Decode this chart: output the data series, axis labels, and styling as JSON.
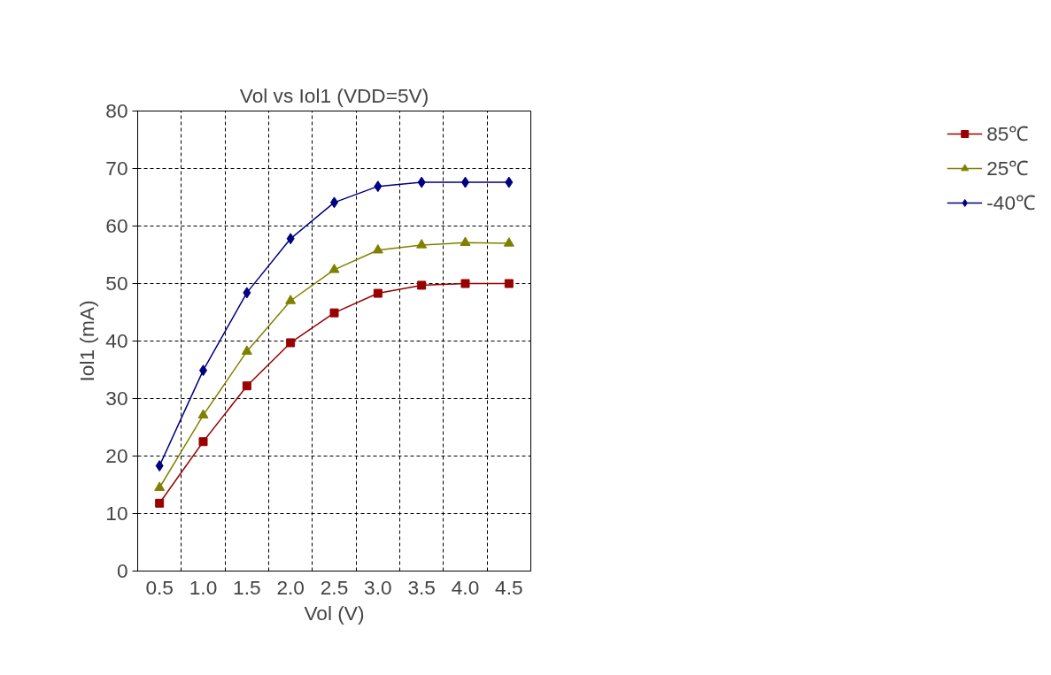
{
  "chart_data": {
    "type": "line",
    "title": "Vol vs Iol1 (VDD=5V)",
    "xlabel": "Vol (V)",
    "ylabel": "Iol1 (mA)",
    "categories": [
      "0.5",
      "1.0",
      "1.5",
      "2.0",
      "2.5",
      "3.0",
      "3.5",
      "4.0",
      "4.5"
    ],
    "ylim": [
      0,
      80
    ],
    "yticks": [
      0,
      10,
      20,
      30,
      40,
      50,
      60,
      70,
      80
    ],
    "grid": true,
    "legend": "right",
    "series": [
      {
        "name": "85℃",
        "color": "#990000",
        "marker": "square",
        "values": [
          11.8,
          22.5,
          32.2,
          39.7,
          44.9,
          48.3,
          49.7,
          50.0,
          50.0
        ]
      },
      {
        "name": "25℃",
        "color": "#808000",
        "marker": "triangle",
        "values": [
          14.5,
          27.1,
          38.2,
          47.0,
          52.4,
          55.8,
          56.7,
          57.1,
          57.0
        ]
      },
      {
        "name": "-40℃",
        "color": "#000080",
        "marker": "diamond",
        "values": [
          18.3,
          34.9,
          48.4,
          57.8,
          64.1,
          66.9,
          67.6,
          67.6,
          67.6
        ]
      }
    ]
  }
}
